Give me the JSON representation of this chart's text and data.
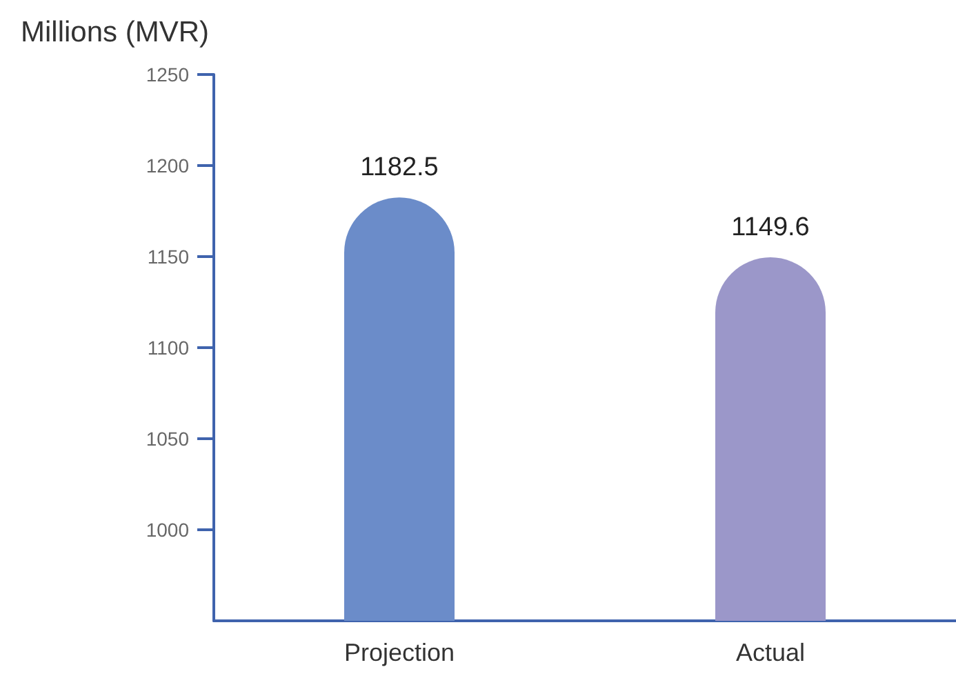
{
  "chart_data": {
    "type": "bar",
    "ylabel": "Millions (MVR)",
    "categories": [
      "Projection",
      "Actual"
    ],
    "values": [
      1182.5,
      1149.6
    ],
    "colors": [
      "#6b8cc9",
      "#9b97c9"
    ],
    "ylim": [
      950,
      1250
    ],
    "yticks": [
      1000,
      1050,
      1100,
      1150,
      1200,
      1250
    ],
    "grid": false,
    "data_labels": true
  }
}
